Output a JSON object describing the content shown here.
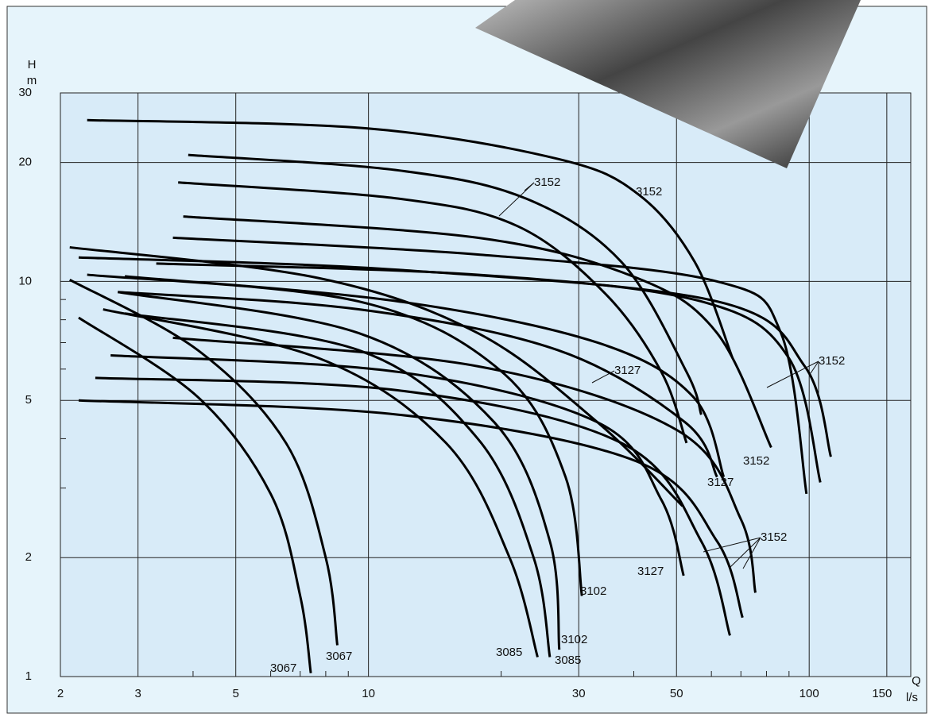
{
  "chart_data": {
    "type": "line",
    "ylabel": "H",
    "yunit": "m",
    "xlabel": "Q",
    "xunit": "l/s",
    "log_x": true,
    "log_y": true,
    "grid": true,
    "color": "#000000",
    "xlim": [
      2,
      170
    ],
    "ylim": [
      1,
      30
    ],
    "xticks": [
      2,
      3,
      5,
      10,
      30,
      50,
      100,
      150
    ],
    "yticks": [
      1,
      2,
      5,
      10,
      20,
      30
    ],
    "xminor_ticks": [
      4,
      6,
      7,
      8,
      9,
      20,
      40,
      60,
      70,
      80,
      90
    ],
    "yminor_ticks": [
      3,
      4,
      6,
      7,
      8,
      9
    ],
    "series": [
      {
        "x": [
          2.3,
          9.9,
          27,
          41,
          55,
          67
        ],
        "values": [
          25.6,
          24.4,
          20.4,
          16.6,
          11.2,
          6.4
        ]
      },
      {
        "x": [
          3.9,
          11.7,
          22.8,
          37.5,
          52.7,
          56.9
        ],
        "values": [
          20.9,
          19.1,
          16.2,
          11.2,
          5.9,
          4.6
        ]
      },
      {
        "x": [
          3.7,
          11.7,
          21.8,
          34.5,
          46.2,
          52.7
        ],
        "values": [
          17.8,
          16.2,
          13.8,
          9.3,
          5.9,
          3.9
        ]
      },
      {
        "x": [
          3.8,
          17.7,
          40.7,
          61.8,
          82.0
        ],
        "values": [
          14.6,
          12.9,
          10.2,
          7.4,
          3.8
        ]
      },
      {
        "x": [
          3.6,
          17.7,
          61.8,
          86.3,
          98.6
        ],
        "values": [
          12.9,
          11.7,
          10.0,
          7.4,
          2.9
        ]
      },
      {
        "x": [
          2.2,
          11.7,
          61.8,
          97.7,
          112
        ],
        "values": [
          11.5,
          10.7,
          8.9,
          6.1,
          3.6
        ]
      },
      {
        "x": [
          3.3,
          17.7,
          56.9,
          89.9,
          106
        ],
        "values": [
          11.1,
          10.4,
          8.9,
          6.4,
          3.1
        ]
      },
      {
        "x": [
          2.1,
          7.7,
          17.7,
          33.1,
          51.6
        ],
        "values": [
          12.2,
          10.2,
          7.4,
          4.4,
          2.7
        ]
      },
      {
        "x": [
          2.8,
          11.7,
          33.1,
          54.6,
          64.0
        ],
        "values": [
          10.3,
          8.9,
          7.0,
          5.1,
          3.2
        ]
      },
      {
        "x": [
          2.7,
          9.5,
          26.9,
          52.3,
          61.8
        ],
        "values": [
          9.4,
          8.5,
          6.7,
          4.4,
          3.2
        ]
      },
      {
        "x": [
          2.2,
          4.1,
          6.0,
          7.0,
          7.4
        ],
        "values": [
          8.1,
          5.1,
          2.9,
          1.6,
          1.02
        ]
      },
      {
        "x": [
          2.1,
          4.1,
          6.5,
          8.0,
          8.5
        ],
        "values": [
          10.1,
          6.7,
          3.9,
          2.0,
          1.2
        ]
      },
      {
        "x": [
          2.5,
          7.7,
          15.0,
          20.9,
          24.2
        ],
        "values": [
          8.5,
          6.4,
          3.9,
          2.0,
          1.12
        ]
      },
      {
        "x": [
          2.8,
          9.5,
          17.7,
          23.7,
          25.8
        ],
        "values": [
          8.3,
          6.7,
          4.0,
          2.0,
          1.12
        ]
      },
      {
        "x": [
          2.7,
          9.5,
          19.3,
          25.8,
          27.1
        ],
        "values": [
          9.4,
          7.4,
          4.4,
          2.2,
          1.17
        ]
      },
      {
        "x": [
          2.3,
          9.5,
          20.1,
          28.0,
          30.5
        ],
        "values": [
          10.4,
          8.9,
          5.9,
          3.2,
          1.6
        ]
      },
      {
        "x": [
          2.6,
          11.7,
          33.1,
          46.2,
          51.9
        ],
        "values": [
          6.5,
          5.9,
          4.4,
          2.8,
          1.8
        ]
      },
      {
        "x": [
          2.4,
          11.7,
          37.5,
          56.9,
          66.1
        ],
        "values": [
          5.7,
          5.3,
          3.9,
          2.2,
          1.27
        ]
      },
      {
        "x": [
          2.2,
          11.7,
          40.7,
          61.8,
          70.6
        ],
        "values": [
          5.0,
          4.6,
          3.5,
          2.2,
          1.41
        ]
      },
      {
        "x": [
          3.6,
          17.7,
          50.2,
          70.0,
          75.5
        ],
        "values": [
          7.2,
          6.1,
          4.2,
          2.5,
          1.63
        ]
      }
    ],
    "annotations": [
      {
        "text": "3152"
      },
      {
        "text": "3152"
      },
      {
        "text": "3152"
      },
      {
        "text": "3127"
      },
      {
        "text": "3152"
      },
      {
        "text": "3127"
      },
      {
        "text": "3152"
      },
      {
        "text": "3127"
      },
      {
        "text": "3102"
      },
      {
        "text": "3102"
      },
      {
        "text": "3085"
      },
      {
        "text": "3085"
      },
      {
        "text": "3067"
      },
      {
        "text": "3067"
      }
    ]
  }
}
